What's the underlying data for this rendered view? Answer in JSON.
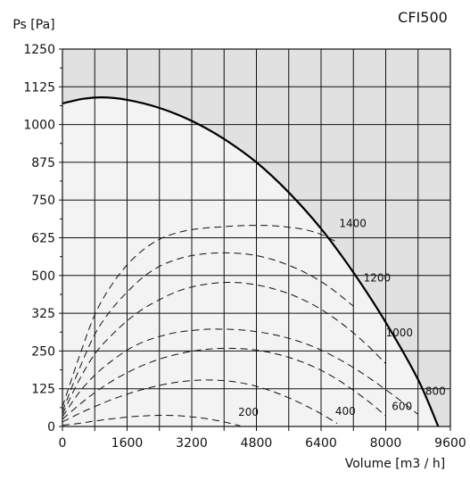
{
  "chart_data": {
    "type": "line",
    "title": "CFI500",
    "xlabel": "Volume [m3 / h]",
    "ylabel": "Ps [Pa]",
    "xlim": [
      0,
      9600
    ],
    "ylim": [
      0,
      1250
    ],
    "x_ticks": [
      "0",
      "1600",
      "3200",
      "4800",
      "6400",
      "8000",
      "9600"
    ],
    "y_ticks": [
      "0",
      "125",
      "250",
      "325",
      "500",
      "625",
      "750",
      "875",
      "1000",
      "1125",
      "1250"
    ],
    "grid": true,
    "max_curve": {
      "name": "",
      "x": [
        0,
        500,
        1000,
        1600,
        2400,
        3200,
        4000,
        4800,
        5600,
        6400,
        7200,
        8000,
        8800,
        9300
      ],
      "y": [
        1070,
        1085,
        1090,
        1082,
        1055,
        1012,
        952,
        875,
        775,
        655,
        510,
        345,
        155,
        0
      ]
    },
    "speed_curves": [
      {
        "name": "1400",
        "label_at": [
          6850,
          660
        ],
        "x": [
          0,
          400,
          800,
          1200,
          1600,
          2000,
          2400,
          2800,
          3200,
          3600,
          4000,
          4400,
          4800,
          5200,
          5600,
          6000,
          6400,
          6800
        ],
        "y": [
          65,
          225,
          370,
          465,
          535,
          585,
          620,
          640,
          652,
          658,
          662,
          665,
          666,
          665,
          660,
          652,
          636,
          610
        ]
      },
      {
        "name": "1200",
        "label_at": [
          7450,
          480
        ],
        "x": [
          0,
          400,
          800,
          1200,
          1600,
          2000,
          2400,
          2800,
          3200,
          3600,
          4000,
          4400,
          4800,
          5200,
          5600,
          6000,
          6400,
          6800,
          7200
        ],
        "y": [
          50,
          185,
          305,
          385,
          445,
          495,
          530,
          552,
          566,
          573,
          575,
          573,
          566,
          553,
          534,
          510,
          480,
          442,
          398
        ]
      },
      {
        "name": "1000",
        "label_at": [
          8000,
          298
        ],
        "x": [
          0,
          400,
          800,
          1200,
          1600,
          2000,
          2400,
          2800,
          3200,
          3600,
          4000,
          4400,
          4800,
          5200,
          5600,
          6000,
          6400,
          6800,
          7200,
          7600,
          8000
        ],
        "y": [
          40,
          150,
          240,
          300,
          350,
          390,
          420,
          445,
          462,
          472,
          477,
          476,
          469,
          457,
          440,
          417,
          388,
          352,
          310,
          262,
          208
        ]
      },
      {
        "name": "800",
        "label_at": [
          8980,
          105
        ],
        "x": [
          0,
          400,
          800,
          1200,
          1600,
          2000,
          2400,
          2800,
          3200,
          3600,
          4000,
          4400,
          4800,
          5200,
          5600,
          6000,
          6400,
          6800,
          7200,
          7600,
          8000,
          8400,
          8800
        ],
        "y": [
          32,
          110,
          170,
          215,
          253,
          280,
          298,
          311,
          318,
          322,
          322,
          320,
          314,
          305,
          292,
          275,
          253,
          226,
          195,
          160,
          122,
          82,
          40
        ]
      },
      {
        "name": "600",
        "label_at": [
          8150,
          55
        ],
        "x": [
          0,
          400,
          800,
          1200,
          1600,
          2000,
          2400,
          2800,
          3200,
          3600,
          4000,
          4400,
          4800,
          5200,
          5600,
          6000,
          6400,
          6800,
          7200,
          7600,
          8000
        ],
        "y": [
          24,
          70,
          112,
          148,
          178,
          203,
          223,
          238,
          249,
          256,
          259,
          258,
          253,
          243,
          229,
          210,
          186,
          156,
          120,
          80,
          35
        ]
      },
      {
        "name": "400",
        "label_at": [
          6750,
          38
        ],
        "x": [
          0,
          400,
          800,
          1200,
          1600,
          2000,
          2400,
          2800,
          3200,
          3600,
          4000,
          4400,
          4800,
          5200,
          5600,
          6000,
          6400,
          6800
        ],
        "y": [
          15,
          42,
          66,
          88,
          107,
          123,
          136,
          146,
          152,
          154,
          152,
          145,
          133,
          116,
          95,
          70,
          42,
          10
        ]
      },
      {
        "name": "200",
        "label_at": [
          4350,
          35
        ],
        "x": [
          0,
          400,
          800,
          1200,
          1600,
          2000,
          2400,
          2800,
          3200,
          3600,
          4000,
          4400
        ],
        "y": [
          4,
          10,
          18,
          25,
          31,
          35,
          37,
          36,
          32,
          25,
          15,
          2
        ]
      }
    ],
    "colors": {
      "plot_background": "#f3f3f3",
      "shaded_region": "#e1e1e1",
      "grid": "#111111",
      "max_curve": "#000000",
      "speed_curves": "#111111"
    }
  }
}
